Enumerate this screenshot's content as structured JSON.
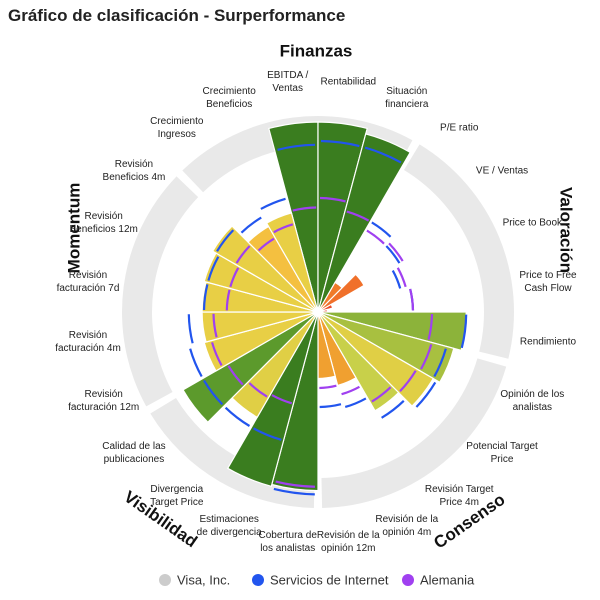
{
  "chart_data": {
    "type": "polar-bar",
    "title": "Gráfico de clasificación - Surperformance",
    "groups": [
      "Finanzas",
      "Valoración",
      "Consenso",
      "Visibilidad",
      "Momentum"
    ],
    "categories": [
      "EBITDA / Ventas",
      "Rentabilidad",
      "Situación financiera",
      "P/E ratio",
      "VE / Ventas",
      "Price to Book",
      "Price to Free Cash Flow",
      "Rendimiento",
      "Opinión de los analistas",
      "Potencial Target Price",
      "Revisión Target Price 4m",
      "Revisión de la opinión 4m",
      "Revisión de la opinión 12m",
      "Cobertura de los analistas",
      "Estimaciones de divergencia",
      "Divergencia Target Price",
      "Calidad de las publicaciones",
      "Revisión facturación 12m",
      "Revisión facturación 4m",
      "Revisión facturación 7d",
      "Revisión Beneficios 12m",
      "Revisión Beneficios 4m",
      "Crecimiento Ingresos",
      "Crecimiento Beneficios"
    ],
    "ylim": [
      0,
      100
    ],
    "series": [
      {
        "name": "Visa, Inc.",
        "color": "#cccccc",
        "values": [
          100,
          100,
          97,
          18,
          28,
          8,
          5,
          78,
          74,
          70,
          60,
          40,
          35,
          94,
          95,
          64,
          82,
          62,
          61,
          61,
          62,
          64,
          52,
          54
        ],
        "colors": [
          "#3a7d1f",
          "#3a7d1f",
          "#3a7d1f",
          "#f07a2a",
          "#f0702a",
          "#e84a2a",
          "#e8402a",
          "#8cb33a",
          "#a8c040",
          "#e0cf45",
          "#c8d04a",
          "#f0a030",
          "#f0a030",
          "#3a7d1f",
          "#3a7d1f",
          "#e0cf45",
          "#5c9a2c",
          "#e8cf45",
          "#e8cf45",
          "#e8cf45",
          "#e8cf45",
          "#e8cf45",
          "#f4c040",
          "#e8cf45"
        ]
      },
      {
        "name": "Servicios de Internet",
        "color": "#2255ee",
        "values": [
          88,
          90,
          90,
          55,
          50,
          45,
          50,
          78,
          70,
          72,
          65,
          52,
          50,
          96,
          70,
          70,
          70,
          70,
          68,
          60,
          60,
          62,
          58,
          62
        ]
      },
      {
        "name": "Alemania",
        "color": "#a040f0",
        "values": [
          55,
          60,
          55,
          50,
          52,
          48,
          50,
          60,
          62,
          60,
          55,
          45,
          40,
          92,
          50,
          52,
          55,
          58,
          55,
          48,
          48,
          50,
          45,
          48
        ]
      }
    ]
  }
}
